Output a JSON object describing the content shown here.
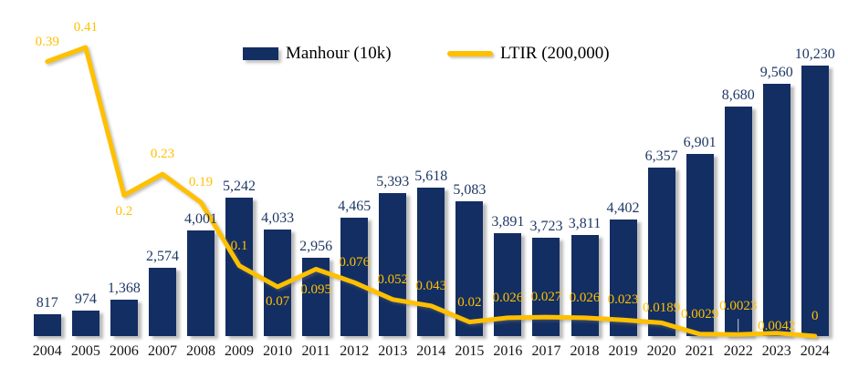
{
  "chart_data": {
    "type": "combo-bar-line",
    "title": "",
    "categories": [
      "2004",
      "2005",
      "2006",
      "2007",
      "2008",
      "2009",
      "2010",
      "2011",
      "2012",
      "2013",
      "2014",
      "2015",
      "2016",
      "2017",
      "2018",
      "2019",
      "2020",
      "2021",
      "2022",
      "2023",
      "2024"
    ],
    "series": [
      {
        "name": "Manhour (10k)",
        "type": "bar",
        "color": "#132E62",
        "values": [
          817,
          974,
          1368,
          2574,
          4001,
          5242,
          4033,
          2956,
          4465,
          5393,
          5618,
          5083,
          3891,
          3723,
          3811,
          4402,
          6357,
          6901,
          8680,
          9560,
          10230
        ],
        "labels": [
          "817",
          "974",
          "1,368",
          "2,574",
          "4,001",
          "5,242",
          "4,033",
          "2,956",
          "4,465",
          "5,393",
          "5,618",
          "5,083",
          "3,891",
          "3,723",
          "3,811",
          "4,402",
          "6,357",
          "6,901",
          "8,680",
          "9,560",
          "10,230"
        ]
      },
      {
        "name": "LTIR (200,000)",
        "type": "line",
        "color": "#FFC000",
        "values": [
          0.39,
          0.41,
          0.2,
          0.23,
          0.19,
          0.1,
          0.07,
          0.095,
          0.076,
          0.052,
          0.043,
          0.02,
          0.026,
          0.027,
          0.026,
          0.023,
          0.0189,
          0.0029,
          0.0023,
          0.0042,
          0
        ],
        "labels": [
          "0.39",
          "0.41",
          "0.2",
          "0.23",
          "0.19",
          "0.1",
          "0.07",
          "0.095",
          "0.076",
          "0.052",
          "0.043",
          "0.02",
          "0.026",
          "0.027",
          "0.026",
          "0.023",
          "0.0189",
          "0.0029",
          "0.0023",
          "0.0042",
          "0"
        ]
      }
    ],
    "ylim_bar": [
      0,
      10230
    ],
    "ylim_line": [
      0,
      0.41
    ],
    "grid": false,
    "axes_visible": false,
    "legend_position": "top-center"
  },
  "colors": {
    "bar": "#132E62",
    "line": "#FFC000",
    "bar_value_label": "#1F3864",
    "line_value_label": "#FFC000",
    "axis_label": "#151515",
    "background": "#FFFFFF",
    "leader_line": "#C5CEDE"
  }
}
